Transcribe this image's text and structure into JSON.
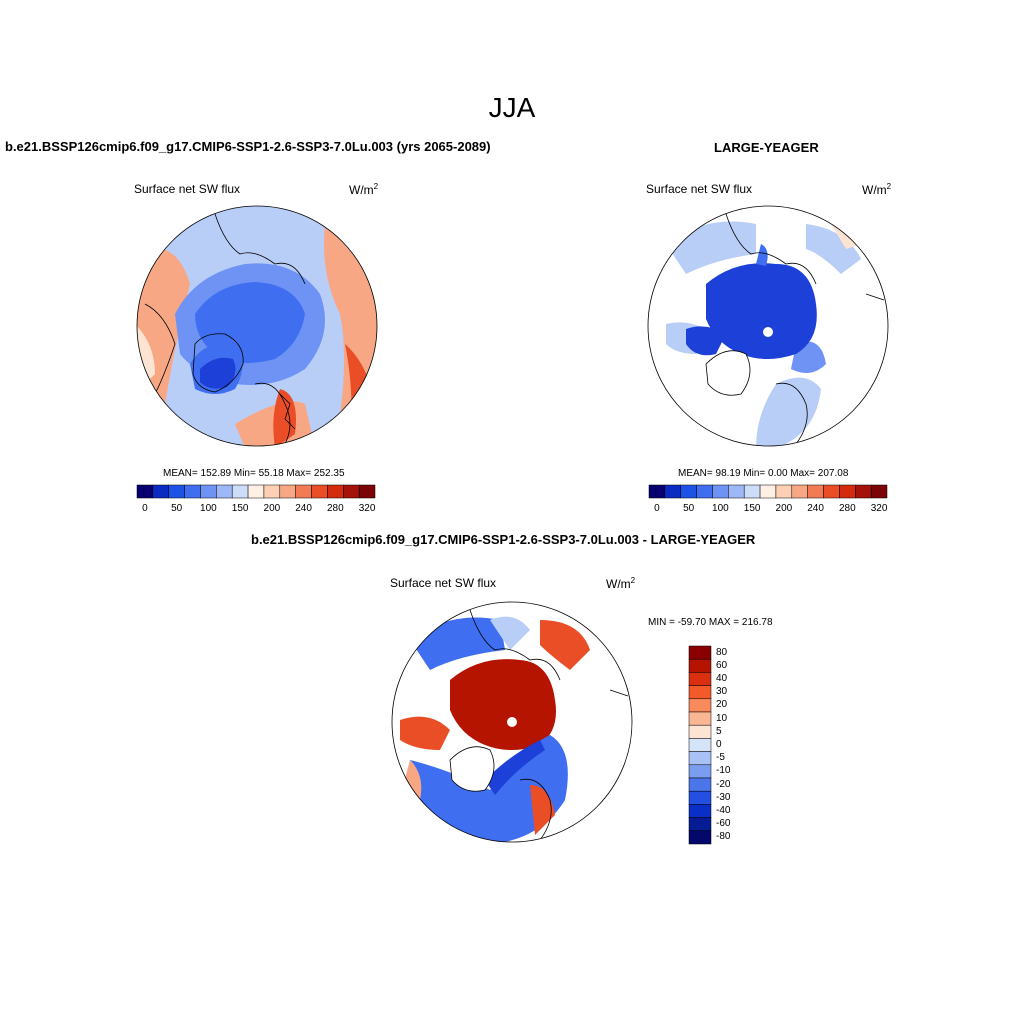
{
  "figure": {
    "season": "JJA",
    "left_title": "b.e21.BSSP126cmip6.f09_g17.CMIP6-SSP1-2.6-SSP3-7.0Lu.003 (yrs 2065-2089)",
    "right_title": "LARGE-YEAGER",
    "diff_title": "b.e21.BSSP126cmip6.f09_g17.CMIP6-SSP1-2.6-SSP3-7.0Lu.003 - LARGE-YEAGER"
  },
  "panels": {
    "left": {
      "variable": "Surface net SW flux",
      "units_base": "W/m",
      "units_exp": "2",
      "stats": "MEAN= 152.89  Min=  55.18  Max= 252.35"
    },
    "right": {
      "variable": "Surface net SW flux",
      "units_base": "W/m",
      "units_exp": "2",
      "stats": "MEAN=  98.19  Min=   0.00  Max= 207.08"
    },
    "diff": {
      "variable": "Surface net SW flux",
      "units_base": "W/m",
      "units_exp": "2",
      "stats": "MIN = -59.70 MAX = 216.78"
    }
  },
  "colorbar_abs": {
    "colors": [
      "#08006e",
      "#0a2cc2",
      "#1d52e6",
      "#3f6ff0",
      "#6e93f5",
      "#9eb7f6",
      "#ccdcf9",
      "#fff0e6",
      "#fdd0b6",
      "#f8a785",
      "#f27b55",
      "#ea4e27",
      "#d42a0e",
      "#a5120a",
      "#7a0407"
    ],
    "labels": [
      "0",
      "50",
      "100",
      "150",
      "200",
      "240",
      "280",
      "320"
    ]
  },
  "colorbar_diff": {
    "colors": [
      "#8a0000",
      "#b41400",
      "#db3010",
      "#f25a2a",
      "#f88a5c",
      "#fab692",
      "#fde3d2",
      "#d6e4fa",
      "#a9c1f5",
      "#7a9df0",
      "#4a76ea",
      "#2350e0",
      "#0a2fc7",
      "#061c95",
      "#03086a"
    ],
    "labels": [
      "80",
      "60",
      "40",
      "30",
      "20",
      "10",
      "5",
      "0",
      "-5",
      "-10",
      "-20",
      "-30",
      "-40",
      "-60",
      "-80"
    ]
  },
  "map_colors": {
    "deep_blue": "#1d40d8",
    "blue": "#3f6ff0",
    "mid_blue": "#6e93f5",
    "light_blue": "#b9cef7",
    "pale": "#fde3d2",
    "salmon": "#f8a785",
    "red_orange": "#ea4e27",
    "dark_red": "#b41400",
    "land": "#ffffff"
  }
}
